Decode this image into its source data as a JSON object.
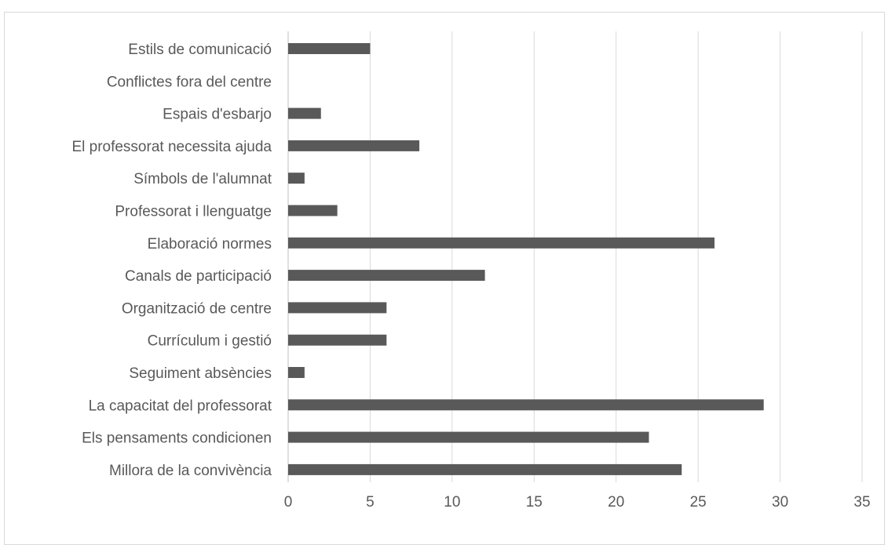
{
  "chart_data": {
    "type": "bar",
    "orientation": "horizontal",
    "title": "",
    "xlabel": "",
    "ylabel": "",
    "categories": [
      "Estils de comunicació",
      "Conflictes fora del centre",
      "Espais d'esbarjo",
      "El professorat necessita ajuda",
      "Símbols de l'alumnat",
      "Professorat i llenguatge",
      "Elaboració normes",
      "Canals de participació",
      "Organització de centre",
      "Currículum i gestió",
      "Seguiment absències",
      "La capacitat del professorat",
      "Els pensaments condicionen",
      "Millora de la convivència"
    ],
    "values": [
      5,
      0,
      2,
      8,
      1,
      3,
      26,
      12,
      6,
      6,
      1,
      29,
      22,
      24
    ],
    "xlim": [
      0,
      35
    ],
    "xticks": [
      0,
      5,
      10,
      15,
      20,
      25,
      30,
      35
    ],
    "grid": "vertical",
    "bar_color": "#595959",
    "grid_color": "#d9d9d9"
  }
}
